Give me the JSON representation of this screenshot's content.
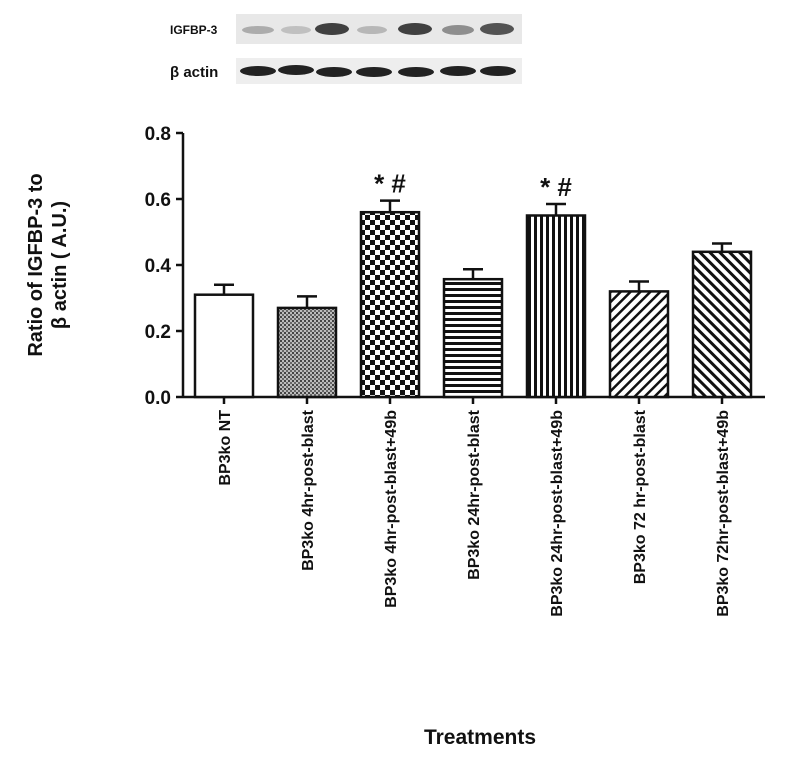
{
  "chart_data": {
    "type": "bar",
    "blot_labels": [
      "IGFBP-3",
      "β actin"
    ],
    "ylabel": [
      "Ratio of IGFBP-3 to",
      "β actin ( A.U.)"
    ],
    "xlabel": "Treatments",
    "categories": [
      "BP3ko NT",
      "BP3ko 4hr-post-blast",
      "BP3ko 4hr-post-blast+49b",
      "BP3ko 24hr-post-blast",
      "BP3ko 24hr-post-blast+49b",
      "BP3ko 72 hr-post-blast",
      "BP3ko 72hr-post-blast+49b"
    ],
    "values": [
      0.31,
      0.27,
      0.56,
      0.357,
      0.55,
      0.32,
      0.44
    ],
    "errors": [
      0.03,
      0.035,
      0.035,
      0.03,
      0.035,
      0.03,
      0.025
    ],
    "annotations": [
      null,
      null,
      "* #",
      null,
      "* #",
      null,
      null
    ],
    "patterns": [
      "none",
      "dots",
      "checker",
      "horizontal",
      "vertical",
      "diagonal-up",
      "diagonal-down"
    ],
    "color": "#111111",
    "ylim": [
      0,
      0.8
    ],
    "yticks": [
      {
        "value": 0,
        "label": "0.0"
      },
      0.2,
      0.4,
      0.6,
      0.8
    ]
  }
}
